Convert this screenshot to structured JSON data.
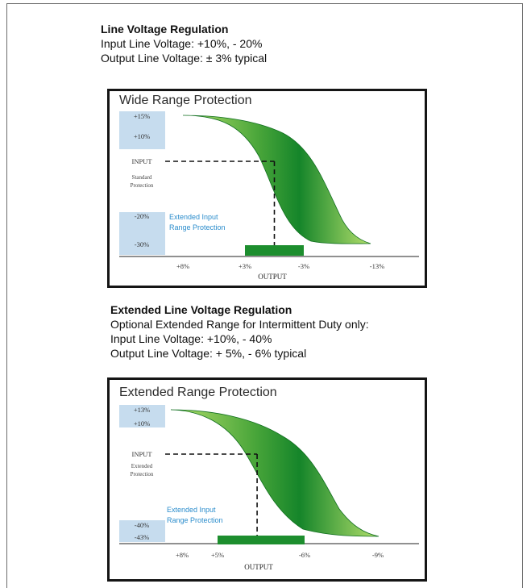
{
  "headings": [
    {
      "title": "Line Voltage Regulation",
      "lines": [
        "Input Line Voltage: +10%, - 20%",
        "Output Line Voltage: ± 3% typical"
      ]
    },
    {
      "title": "Extended Line Voltage Regulation",
      "lines": [
        "Optional Extended Range for Intermittent Duty only:",
        "Input Line Voltage: +10%, - 40%",
        "Output Line Voltage: + 5%, - 6% typical"
      ]
    }
  ],
  "colors": {
    "band_blue": "#c6dcee",
    "curve_dark_green": "#15852a",
    "curve_light_green": "#b4df6c",
    "annotation_blue": "#2a8ccc",
    "regulation_bar_green": "#1d8e2e"
  },
  "chart_data": [
    {
      "type": "area",
      "title": "Wide Range Protection",
      "xlabel": "OUTPUT",
      "y_ticks": [
        {
          "label": "+15%",
          "value": 15
        },
        {
          "label": "+10%",
          "value": 10
        },
        {
          "label": "INPUT",
          "value": 0
        },
        {
          "label": "-20%",
          "value": -20
        },
        {
          "label": "-30%",
          "value": -30
        }
      ],
      "band_label": [
        "Standard",
        "Protection"
      ],
      "x_ticks": [
        {
          "label": "+8%",
          "value": 8
        },
        {
          "label": "+3%",
          "value": 3
        },
        {
          "label": "-3%",
          "value": -3
        },
        {
          "label": "-13%",
          "value": -13
        }
      ],
      "annotation": [
        "Extended Input",
        "Range Protection"
      ],
      "regulation_band": [
        3,
        -3
      ],
      "nominal": {
        "input": 0,
        "output": 0
      }
    },
    {
      "type": "area",
      "title": "Extended Range Protection",
      "xlabel": "OUTPUT",
      "y_ticks": [
        {
          "label": "+13%",
          "value": 13
        },
        {
          "label": "+10%",
          "value": 10
        },
        {
          "label": "INPUT",
          "value": 0
        },
        {
          "label": "-40%",
          "value": -40
        },
        {
          "label": "-43%",
          "value": -43
        }
      ],
      "band_label": [
        "Extended",
        "Protection"
      ],
      "x_ticks": [
        {
          "label": "+8%",
          "value": 8
        },
        {
          "label": "+5%",
          "value": 5
        },
        {
          "label": "-6%",
          "value": -6
        },
        {
          "label": "-9%",
          "value": -9
        }
      ],
      "annotation": [
        "Extended Input",
        "Range Protection"
      ],
      "regulation_band": [
        5,
        -6
      ],
      "nominal": {
        "input": 0,
        "output": 0
      }
    }
  ]
}
